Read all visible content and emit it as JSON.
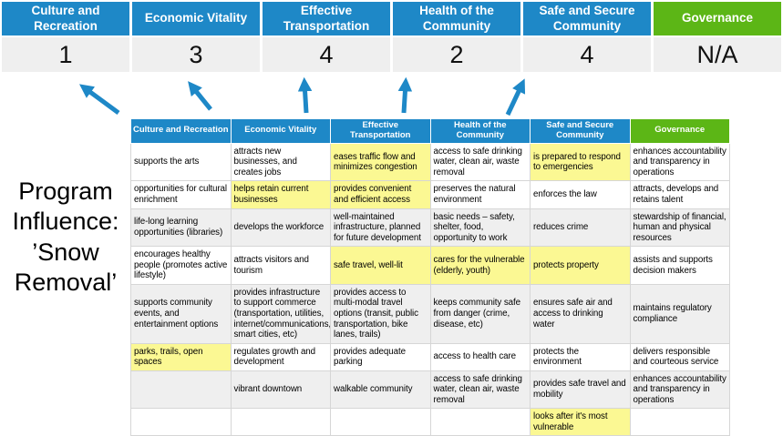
{
  "palette": {
    "header_blue": "#1E88C7",
    "governance_green": "#5CB616",
    "row_gray": "#EFEFEF",
    "score_bg": "#EFEFEF",
    "highlight_yellow": "#FBF893",
    "arrow_blue": "#1E88C7",
    "border_gray": "#D6D6D6"
  },
  "program_label": "Program Influence: ’Snow Removal’",
  "summary": {
    "columns": [
      {
        "label": "Culture and Recreation",
        "score": "1",
        "header_color": "blue"
      },
      {
        "label": "Economic Vitality",
        "score": "3",
        "header_color": "blue"
      },
      {
        "label": "Effective Transportation",
        "score": "4",
        "header_color": "blue"
      },
      {
        "label": "Health of the Community",
        "score": "2",
        "header_color": "blue"
      },
      {
        "label": "Safe and Secure Community",
        "score": "4",
        "header_color": "blue"
      },
      {
        "label": "Governance",
        "score": "N/A",
        "header_color": "green"
      }
    ]
  },
  "matrix": {
    "headers": [
      {
        "label": "Culture and Recreation",
        "color": "blue"
      },
      {
        "label": "Economic Vitality",
        "color": "blue"
      },
      {
        "label": "Effective Transportation",
        "color": "blue"
      },
      {
        "label": "Health of the Community",
        "color": "blue"
      },
      {
        "label": "Safe and Secure Community",
        "color": "blue"
      },
      {
        "label": "Governance",
        "color": "green"
      }
    ],
    "rows": [
      {
        "shade": "white",
        "cells": [
          {
            "text": "supports the arts",
            "highlight": false
          },
          {
            "text": "attracts new businesses, and creates jobs",
            "highlight": false
          },
          {
            "text": "eases traffic flow and minimizes congestion",
            "highlight": true
          },
          {
            "text": "access to safe drinking water, clean air, waste removal",
            "highlight": false
          },
          {
            "text": "is prepared to respond to emergencies",
            "highlight": true
          },
          {
            "text": "enhances accountability and transparency in operations",
            "highlight": false
          }
        ]
      },
      {
        "shade": "white",
        "cells": [
          {
            "text": "opportunities for cultural enrichment",
            "highlight": false
          },
          {
            "text": "helps retain current businesses",
            "highlight": true
          },
          {
            "text": "provides convenient and efficient access",
            "highlight": true
          },
          {
            "text": "preserves the natural environment",
            "highlight": false
          },
          {
            "text": "enforces the law",
            "highlight": false
          },
          {
            "text": "attracts, develops and retains talent",
            "highlight": false
          }
        ]
      },
      {
        "shade": "gray",
        "cells": [
          {
            "text": "life-long learning opportunities (libraries)",
            "highlight": false
          },
          {
            "text": "develops the workforce",
            "highlight": false
          },
          {
            "text": "well-maintained infrastructure, planned for future development",
            "highlight": false
          },
          {
            "text": "basic needs – safety, shelter, food, opportunity to work",
            "highlight": true
          },
          {
            "text": "reduces crime",
            "highlight": false
          },
          {
            "text": "stewardship of financial, human and physical resources",
            "highlight": false
          }
        ]
      },
      {
        "shade": "white",
        "cells": [
          {
            "text": "encourages healthy people (promotes active lifestyle)",
            "highlight": false
          },
          {
            "text": "attracts visitors and tourism",
            "highlight": false
          },
          {
            "text": "safe travel, well-lit",
            "highlight": true
          },
          {
            "text": "cares for the vulnerable (elderly, youth)",
            "highlight": true
          },
          {
            "text": "protects property",
            "highlight": true
          },
          {
            "text": "assists and supports decision makers",
            "highlight": false
          }
        ]
      },
      {
        "shade": "gray",
        "cells": [
          {
            "text": "supports community events, and entertainment options",
            "highlight": false
          },
          {
            "text": "provides infrastructure to support commerce (transportation, utilities, internet/communications, smart cities, etc)",
            "highlight": true
          },
          {
            "text": "provides access to multi-modal travel options (transit, public transportation, bike lanes, trails)",
            "highlight": true
          },
          {
            "text": "keeps community safe from danger (crime, disease, etc)",
            "highlight": true
          },
          {
            "text": "ensures safe air and access to drinking water",
            "highlight": false
          },
          {
            "text": "maintains regulatory compliance",
            "highlight": false
          }
        ]
      },
      {
        "shade": "white",
        "cells": [
          {
            "text": "parks, trails, open spaces",
            "highlight": true
          },
          {
            "text": "regulates growth and development",
            "highlight": false
          },
          {
            "text": "provides adequate parking",
            "highlight": false
          },
          {
            "text": "access to health care",
            "highlight": false
          },
          {
            "text": "protects the environment",
            "highlight": false
          },
          {
            "text": "delivers responsible and courteous service",
            "highlight": false
          }
        ]
      },
      {
        "shade": "gray",
        "cells": [
          {
            "text": "",
            "highlight": false
          },
          {
            "text": "vibrant downtown",
            "highlight": false
          },
          {
            "text": "walkable community",
            "highlight": false
          },
          {
            "text": "access to safe drinking water, clean air, waste removal",
            "highlight": false
          },
          {
            "text": "provides safe travel and mobility",
            "highlight": true
          },
          {
            "text": "enhances accountability and transparency in operations",
            "highlight": false
          }
        ]
      },
      {
        "shade": "white",
        "cells": [
          {
            "text": "",
            "highlight": false
          },
          {
            "text": "",
            "highlight": false
          },
          {
            "text": "",
            "highlight": false
          },
          {
            "text": "",
            "highlight": false
          },
          {
            "text": "looks after it's most vulnerable",
            "highlight": true
          },
          {
            "text": "",
            "highlight": false
          }
        ]
      }
    ]
  }
}
